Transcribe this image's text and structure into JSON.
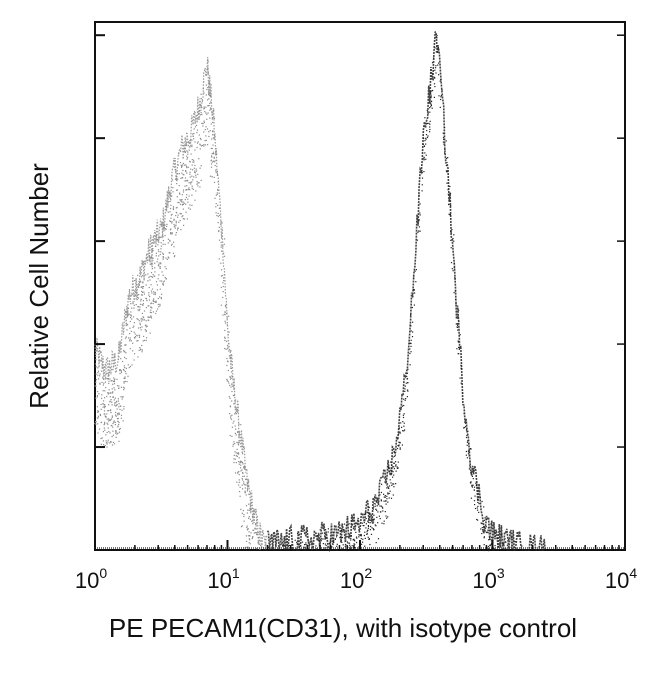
{
  "chart_data": {
    "type": "area",
    "title": "",
    "xlabel": "PE PECAM1(CD31), with isotype control",
    "ylabel": "Relative Cell Number",
    "x_scale": "log",
    "xlim": [
      1,
      10000
    ],
    "x_ticks": [
      {
        "value": 1,
        "base": "10",
        "exp": "0"
      },
      {
        "value": 10,
        "base": "10",
        "exp": "1"
      },
      {
        "value": 100,
        "base": "10",
        "exp": "2"
      },
      {
        "value": 1000,
        "base": "10",
        "exp": "3"
      },
      {
        "value": 10000,
        "base": "10",
        "exp": "4"
      }
    ],
    "y_scale": "linear",
    "ylim": [
      0,
      100
    ],
    "y_tick_count": 5,
    "grid": false,
    "legend": "none",
    "series": [
      {
        "style": "dotted-gray",
        "color": "#8a8a8a",
        "x": [
          1.0,
          1.2,
          1.5,
          1.8,
          2.2,
          2.7,
          3.2,
          3.8,
          4.5,
          5.3,
          6.2,
          7.0,
          7.8,
          8.6,
          9.3,
          10.0,
          11.0,
          12.5,
          14.0,
          16.0,
          18.0,
          20.0
        ],
        "y": [
          38,
          34,
          36,
          48,
          52,
          58,
          61,
          70,
          76,
          79,
          85,
          92,
          82,
          68,
          57,
          42,
          32,
          22,
          13,
          6,
          2,
          0.5
        ]
      },
      {
        "style": "dotted-dark",
        "color": "#222222",
        "x": [
          20,
          40,
          70,
          100,
          140,
          180,
          220,
          260,
          300,
          340,
          380,
          420,
          470,
          530,
          600,
          700,
          850,
          1000,
          1300,
          1700,
          2500
        ],
        "y": [
          1,
          2,
          3,
          5,
          10,
          18,
          32,
          55,
          78,
          88,
          98,
          84,
          68,
          48,
          30,
          16,
          7,
          3,
          1.5,
          0.5,
          0
        ]
      }
    ]
  }
}
